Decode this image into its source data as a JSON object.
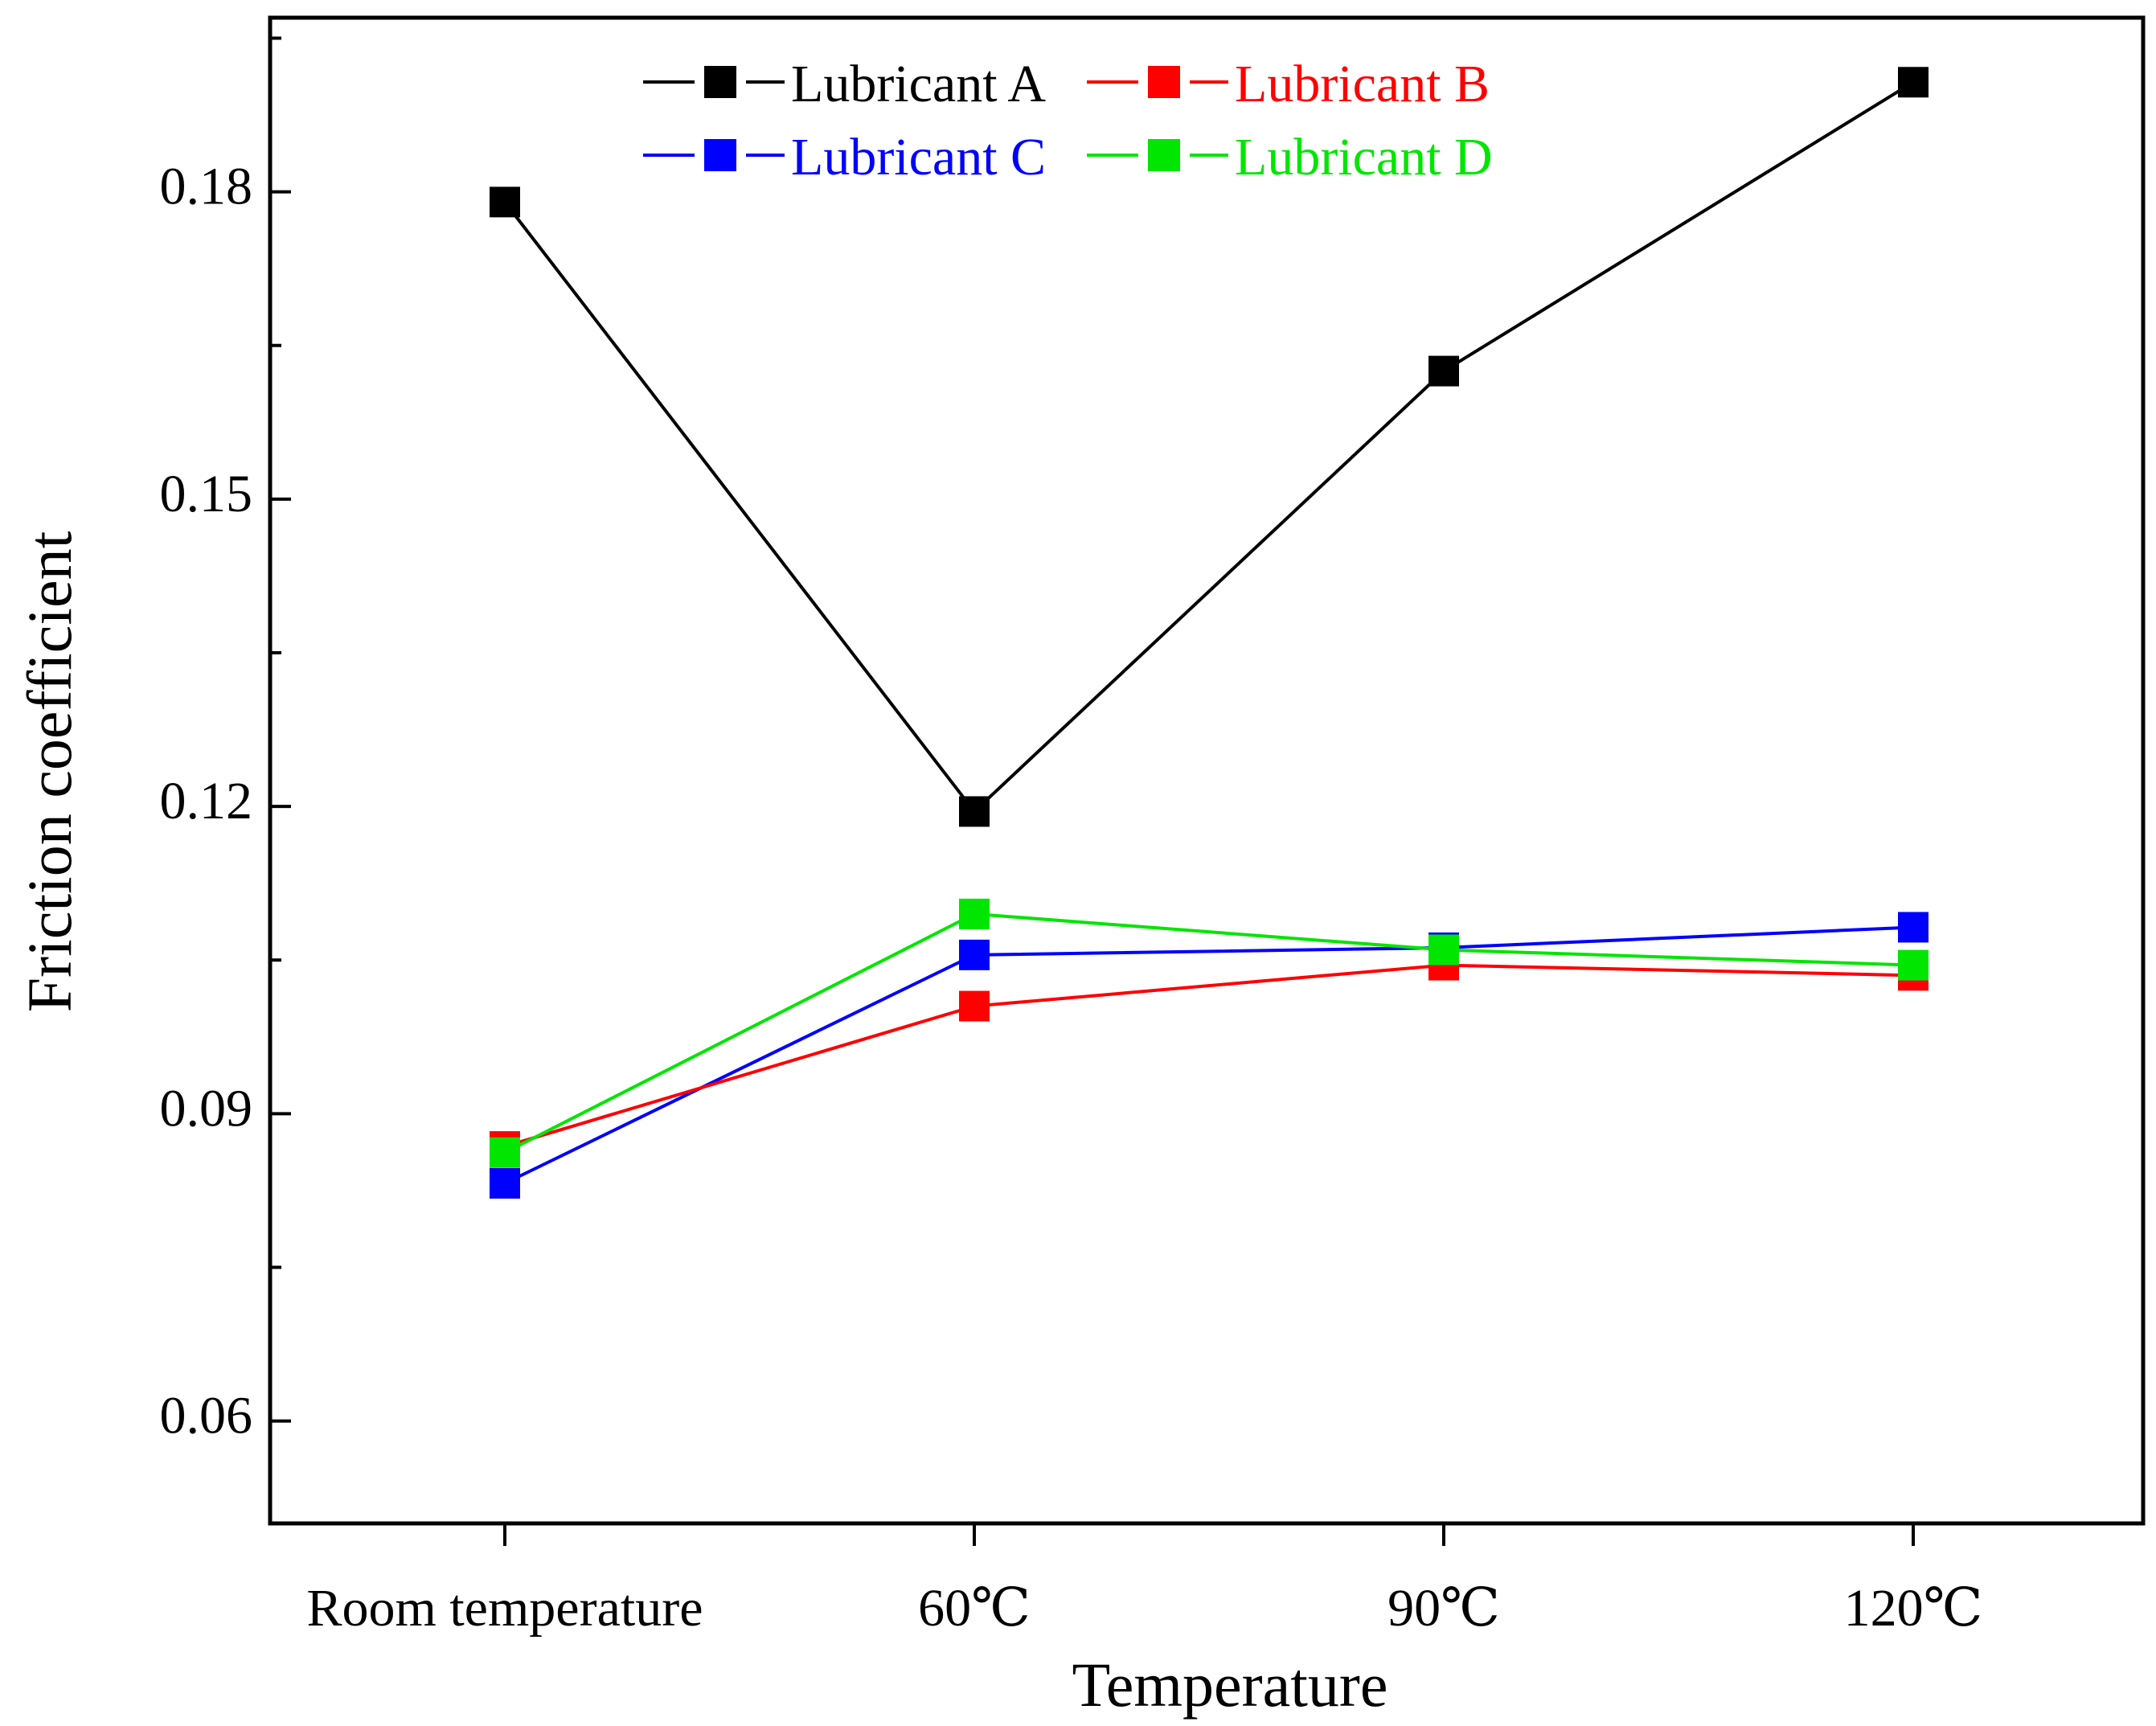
{
  "chart_data": {
    "type": "line",
    "title": "",
    "xlabel": "Temperature",
    "ylabel": "Friction coefficient",
    "categories": [
      "Room temperature",
      "60℃",
      "90℃",
      "120℃"
    ],
    "ylim": [
      0.05,
      0.197
    ],
    "yticks": [
      0.06,
      0.09,
      0.12,
      0.15,
      0.18
    ],
    "ytick_labels": [
      "0.06",
      "0.09",
      "0.12",
      "0.15",
      "0.18"
    ],
    "grid": false,
    "legend_position": "top",
    "series": [
      {
        "name": "Lubricant A",
        "color": "#000000",
        "values": [
          0.179,
          0.1195,
          0.1625,
          0.1907
        ]
      },
      {
        "name": "Lubricant B",
        "color": "#ff0000",
        "values": [
          0.0868,
          0.1005,
          0.1045,
          0.1035
        ]
      },
      {
        "name": "Lubricant C",
        "color": "#0000ff",
        "values": [
          0.0832,
          0.1055,
          0.1062,
          0.1082
        ]
      },
      {
        "name": "Lubricant D",
        "color": "#00e600",
        "values": [
          0.0862,
          0.1095,
          0.106,
          0.1045
        ]
      }
    ]
  }
}
